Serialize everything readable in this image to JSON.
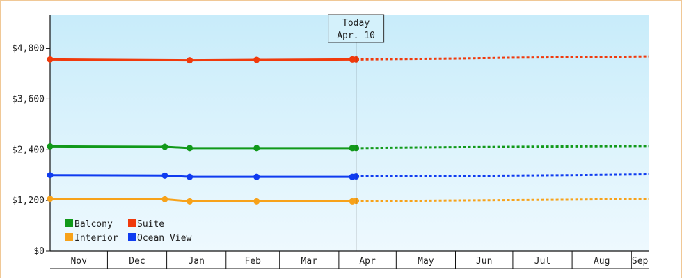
{
  "chart_data": {
    "type": "line",
    "y_ticks": [
      "$0",
      "$1,200",
      "$2,400",
      "$3,600",
      "$4,800"
    ],
    "y_tick_values": [
      0,
      1200,
      2400,
      3600,
      4800
    ],
    "ylim": [
      0,
      5600
    ],
    "x_months": [
      "Nov",
      "Dec",
      "Jan",
      "Feb",
      "Mar",
      "Apr",
      "May",
      "Jun",
      "Jul",
      "Aug",
      "Sep"
    ],
    "x_range": [
      "2014-11-01",
      "2015-09-10"
    ],
    "today": {
      "label": "Today",
      "date_label": "Apr. 10",
      "date": "2015-04-10"
    },
    "grid": false,
    "legend_position": "bottom-left",
    "series": [
      {
        "name": "Balcony",
        "color": "#11991a",
        "points": [
          [
            "2014-11-01",
            2480
          ],
          [
            "2014-12-31",
            2470
          ],
          [
            "2015-01-13",
            2440
          ],
          [
            "2015-02-17",
            2440
          ],
          [
            "2015-04-08",
            2440
          ],
          [
            "2015-04-10",
            2440
          ]
        ],
        "forecast": [
          [
            "2015-04-10",
            2440
          ],
          [
            "2015-05-01",
            2450
          ],
          [
            "2015-05-31",
            2460
          ],
          [
            "2015-07-01",
            2470
          ],
          [
            "2015-08-01",
            2480
          ],
          [
            "2015-09-10",
            2490
          ]
        ]
      },
      {
        "name": "Suite",
        "color": "#f03a0c",
        "points": [
          [
            "2014-11-01",
            4540
          ],
          [
            "2015-01-13",
            4520
          ],
          [
            "2015-02-17",
            4530
          ],
          [
            "2015-04-08",
            4540
          ],
          [
            "2015-04-10",
            4540
          ]
        ],
        "forecast": [
          [
            "2015-04-10",
            4540
          ],
          [
            "2015-05-01",
            4550
          ],
          [
            "2015-05-31",
            4560
          ],
          [
            "2015-07-01",
            4580
          ],
          [
            "2015-08-01",
            4590
          ],
          [
            "2015-09-10",
            4610
          ]
        ]
      },
      {
        "name": "Interior",
        "color": "#f7a21a",
        "points": [
          [
            "2014-11-01",
            1240
          ],
          [
            "2014-12-31",
            1230
          ],
          [
            "2015-01-13",
            1180
          ],
          [
            "2015-02-17",
            1180
          ],
          [
            "2015-04-08",
            1180
          ],
          [
            "2015-04-10",
            1190
          ]
        ],
        "forecast": [
          [
            "2015-04-10",
            1190
          ],
          [
            "2015-05-01",
            1190
          ],
          [
            "2015-05-31",
            1200
          ],
          [
            "2015-07-01",
            1210
          ],
          [
            "2015-08-01",
            1220
          ],
          [
            "2015-09-10",
            1240
          ]
        ]
      },
      {
        "name": "Ocean View",
        "color": "#0f3cf0",
        "points": [
          [
            "2014-11-01",
            1800
          ],
          [
            "2014-12-31",
            1790
          ],
          [
            "2015-01-13",
            1760
          ],
          [
            "2015-02-17",
            1760
          ],
          [
            "2015-04-08",
            1760
          ],
          [
            "2015-04-10",
            1770
          ]
        ],
        "forecast": [
          [
            "2015-04-10",
            1770
          ],
          [
            "2015-05-01",
            1770
          ],
          [
            "2015-05-31",
            1780
          ],
          [
            "2015-07-01",
            1790
          ],
          [
            "2015-08-01",
            1800
          ],
          [
            "2015-09-10",
            1820
          ]
        ]
      }
    ]
  }
}
